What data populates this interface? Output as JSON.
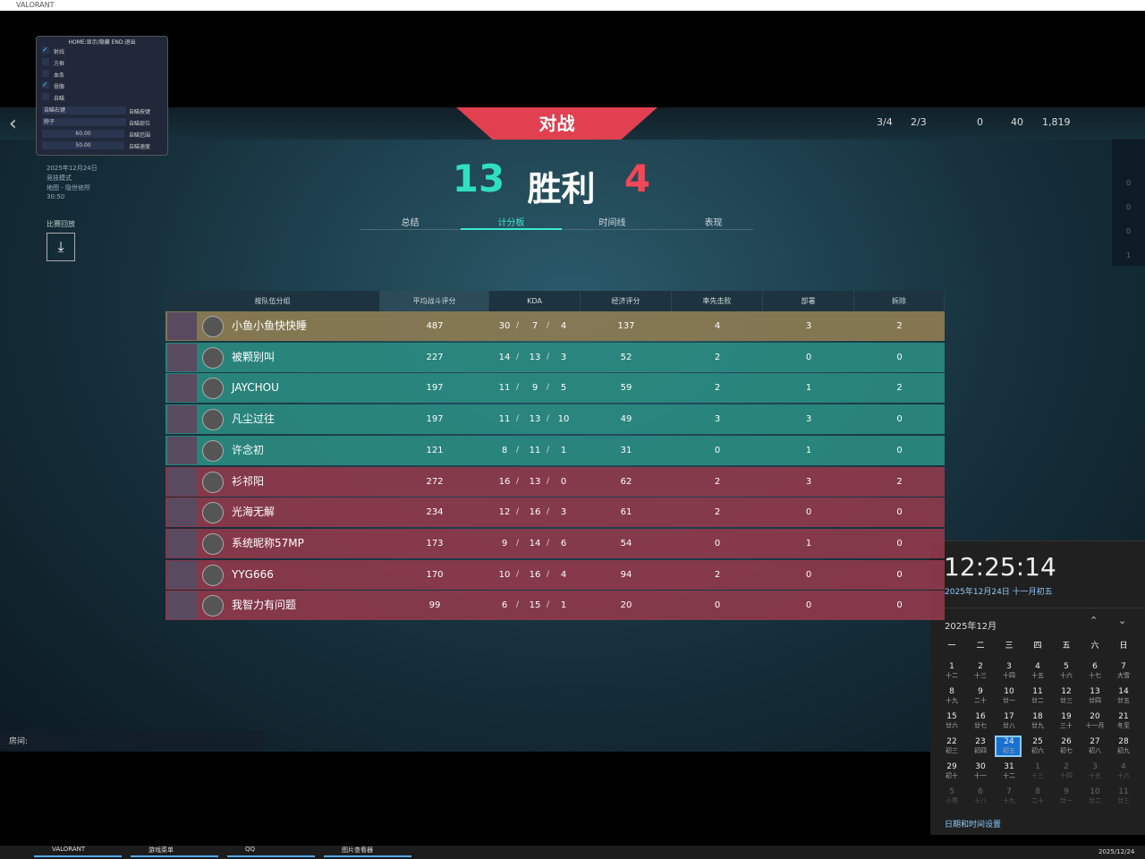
{
  "window": {
    "title": "VALORANT"
  },
  "overlay": {
    "header": "HOME:显示/隐藏 END:退出",
    "checks": [
      {
        "label": "射线",
        "on": true
      },
      {
        "label": "方框",
        "on": false
      },
      {
        "label": "血条",
        "on": false
      },
      {
        "label": "骨骼",
        "on": true
      },
      {
        "label": "自瞄",
        "on": false
      }
    ],
    "selects": [
      {
        "value": "自瞄右键",
        "label": "自瞄按键"
      },
      {
        "value": "脖子",
        "label": "自瞄部位"
      }
    ],
    "sliders": [
      {
        "value": "60.00",
        "label": "自瞄范围"
      },
      {
        "value": "50.00",
        "label": "自瞄速度"
      }
    ]
  },
  "match": {
    "date": "2025年12月24日",
    "mode": "竞技模式",
    "map": "地图 - 隐世修所",
    "duration": "30:50",
    "replay": "比赛回放"
  },
  "nav": {
    "play": "对战",
    "res": [
      "3/4",
      "2/3",
      "0",
      "40",
      "1,819"
    ],
    "side": [
      0,
      0,
      0,
      1
    ]
  },
  "score": {
    "ours": 13,
    "result": "胜利",
    "theirs": 4
  },
  "tabs": {
    "items": [
      "总结",
      "计分板",
      "时间线",
      "表现"
    ],
    "active": 1
  },
  "table": {
    "headers": [
      "按队伍分组",
      "平均战斗评分",
      "KDA",
      "经济评分",
      "率先击败",
      "部署",
      "拆除"
    ],
    "rows": [
      {
        "name": "小鱼小鱼快快睡",
        "acs": 487,
        "k": 30,
        "d": 7,
        "a": 4,
        "econ": 137,
        "fb": 4,
        "plants": 3,
        "defuses": 2,
        "color": "#8c7c52"
      },
      {
        "name": "被颗别叫",
        "acs": 227,
        "k": 14,
        "d": 13,
        "a": 3,
        "econ": 52,
        "fb": 2,
        "plants": 0,
        "defuses": 0,
        "color": "#2a8a80"
      },
      {
        "name": "JAYCHOU",
        "acs": 197,
        "k": 11,
        "d": 9,
        "a": 5,
        "econ": 59,
        "fb": 2,
        "plants": 1,
        "defuses": 2,
        "color": "#2a8a80"
      },
      {
        "name": "凡尘过往",
        "acs": 197,
        "k": 11,
        "d": 13,
        "a": 10,
        "econ": 49,
        "fb": 3,
        "plants": 3,
        "defuses": 0,
        "color": "#2a8a80"
      },
      {
        "name": "许念初",
        "acs": 121,
        "k": 8,
        "d": 11,
        "a": 1,
        "econ": 31,
        "fb": 0,
        "plants": 1,
        "defuses": 0,
        "color": "#2a8a80"
      },
      {
        "name": "衫祁阳",
        "acs": 272,
        "k": 16,
        "d": 13,
        "a": 0,
        "econ": 62,
        "fb": 2,
        "plants": 3,
        "defuses": 2,
        "color": "#8e3a4c"
      },
      {
        "name": "光海无解",
        "acs": 234,
        "k": 12,
        "d": 16,
        "a": 3,
        "econ": 61,
        "fb": 2,
        "plants": 0,
        "defuses": 0,
        "color": "#8e3a4c"
      },
      {
        "name": "系统昵称57MP",
        "acs": 173,
        "k": 9,
        "d": 14,
        "a": 6,
        "econ": 54,
        "fb": 0,
        "plants": 1,
        "defuses": 0,
        "color": "#8e3a4c"
      },
      {
        "name": "YYG666",
        "acs": 170,
        "k": 10,
        "d": 16,
        "a": 4,
        "econ": 94,
        "fb": 2,
        "plants": 0,
        "defuses": 0,
        "color": "#8e3a4c"
      },
      {
        "name": "我智力有问题",
        "acs": 99,
        "k": 6,
        "d": 15,
        "a": 1,
        "econ": 20,
        "fb": 0,
        "plants": 0,
        "defuses": 0,
        "color": "#8e3a4c"
      }
    ]
  },
  "room": "房间:",
  "clock": {
    "time": "12:25:14",
    "date": "2025年12月24日 十一月初五",
    "month": "2025年12月",
    "weekdays": [
      "一",
      "二",
      "三",
      "四",
      "五",
      "六",
      "日"
    ],
    "days": [
      {
        "d": 1,
        "l": "十二"
      },
      {
        "d": 2,
        "l": "十三"
      },
      {
        "d": 3,
        "l": "十四"
      },
      {
        "d": 4,
        "l": "十五"
      },
      {
        "d": 5,
        "l": "十六"
      },
      {
        "d": 6,
        "l": "十七"
      },
      {
        "d": 7,
        "l": "大雪"
      },
      {
        "d": 8,
        "l": "十九"
      },
      {
        "d": 9,
        "l": "二十"
      },
      {
        "d": 10,
        "l": "廿一"
      },
      {
        "d": 11,
        "l": "廿二"
      },
      {
        "d": 12,
        "l": "廿三"
      },
      {
        "d": 13,
        "l": "廿四"
      },
      {
        "d": 14,
        "l": "廿五"
      },
      {
        "d": 15,
        "l": "廿六"
      },
      {
        "d": 16,
        "l": "廿七"
      },
      {
        "d": 17,
        "l": "廿八"
      },
      {
        "d": 18,
        "l": "廿九"
      },
      {
        "d": 19,
        "l": "三十"
      },
      {
        "d": 20,
        "l": "十一月"
      },
      {
        "d": 21,
        "l": "冬至"
      },
      {
        "d": 22,
        "l": "初三"
      },
      {
        "d": 23,
        "l": "初四"
      },
      {
        "d": 24,
        "l": "初五"
      },
      {
        "d": 25,
        "l": "初六"
      },
      {
        "d": 26,
        "l": "初七"
      },
      {
        "d": 27,
        "l": "初八"
      },
      {
        "d": 28,
        "l": "初九"
      },
      {
        "d": 29,
        "l": "初十"
      },
      {
        "d": 30,
        "l": "十一"
      },
      {
        "d": 31,
        "l": "十二"
      },
      {
        "d": 1,
        "l": "十三"
      },
      {
        "d": 2,
        "l": "十四"
      },
      {
        "d": 3,
        "l": "十五"
      },
      {
        "d": 4,
        "l": "十六"
      },
      {
        "d": 5,
        "l": "小寒"
      },
      {
        "d": 6,
        "l": "十八"
      },
      {
        "d": 7,
        "l": "十九"
      },
      {
        "d": 8,
        "l": "二十"
      },
      {
        "d": 9,
        "l": "廿一"
      },
      {
        "d": 10,
        "l": "廿二"
      },
      {
        "d": 11,
        "l": "廿三"
      }
    ],
    "current_month_days": 31,
    "today_index": 23,
    "settings": "日期和时间设置"
  },
  "taskbar": {
    "apps": [
      "VALORANT",
      "游戏菜单",
      "QQ",
      "图片查看器"
    ],
    "date": "2025/12/24"
  }
}
